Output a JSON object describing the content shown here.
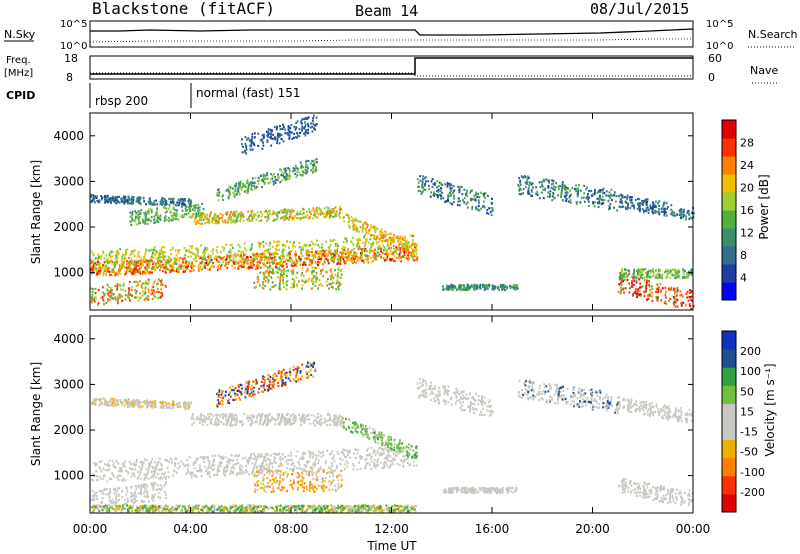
{
  "header": {
    "station": "Blackstone (fitACF)",
    "beam": "Beam 14",
    "date": "08/Jul/2015"
  },
  "top_panels": {
    "nsky_label": "N.Sky",
    "nsearch_label": "N.Search",
    "freq_label": "Freq.",
    "freq_unit": "[MHz]",
    "nave_label": "Nave",
    "cpid_label": "CPID",
    "noise_left_ticks": [
      "10^5",
      "10^0"
    ],
    "noise_right_ticks": [
      "10^5",
      "10^0"
    ],
    "freq_left_ticks": [
      "18",
      "8"
    ],
    "freq_right_ticks": [
      "60",
      "0"
    ],
    "cpid_segments": [
      {
        "label": "rbsp 200"
      },
      {
        "label": "normal (fast) 151"
      }
    ]
  },
  "chart_data": [
    {
      "type": "heatmap",
      "title": "",
      "ylabel": "Slant Range [km]",
      "xlabel": "",
      "yticks": [
        "4000",
        "3000",
        "2000",
        "1000"
      ],
      "colorbar_label": "Power [dB]",
      "colorbar_ticks": [
        "28",
        "24",
        "20",
        "16",
        "12",
        "8",
        "4"
      ],
      "colorbar_colors": [
        "#0000ff",
        "#1e3fa0",
        "#2f6f8f",
        "#3a8f6a",
        "#50b040",
        "#a0d030",
        "#f0c000",
        "#ff8000",
        "#ff3000",
        "#e00000"
      ]
    },
    {
      "type": "heatmap",
      "title": "",
      "ylabel": "Slant Range [km]",
      "xlabel": "Time UT",
      "yticks": [
        "4000",
        "3000",
        "2000",
        "1000"
      ],
      "xticks": [
        "00:00",
        "04:00",
        "08:00",
        "12:00",
        "16:00",
        "20:00",
        "00:00"
      ],
      "colorbar_label": "Velocity [m s⁻¹]",
      "colorbar_ticks": [
        "200",
        "100",
        "50",
        "15",
        "-15",
        "-50",
        "-100",
        "-200"
      ],
      "colorbar_colors": [
        "#e00000",
        "#ff3000",
        "#ff8000",
        "#f0b000",
        "#c8c8c0",
        "#c8c8c0",
        "#70c040",
        "#30a040",
        "#205090",
        "#1030c0"
      ]
    }
  ]
}
